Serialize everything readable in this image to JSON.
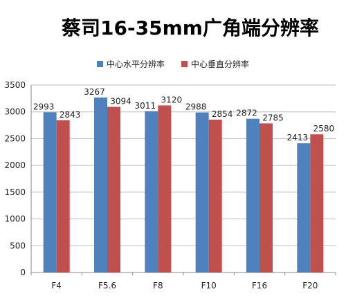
{
  "chart_data": {
    "type": "bar",
    "title": "蔡司16-35mm广角端分辨率",
    "categories": [
      "F4",
      "F5.6",
      "F8",
      "F10",
      "F16",
      "F20"
    ],
    "series": [
      {
        "name": "中心水平分辨率",
        "values": [
          2993,
          3267,
          3011,
          2988,
          2872,
          2413
        ],
        "color": "#4F81BD"
      },
      {
        "name": "中心垂直分辨率",
        "values": [
          2843,
          3094,
          3120,
          2854,
          2785,
          2580
        ],
        "color": "#C0504D"
      }
    ],
    "ylim": [
      0,
      3500
    ],
    "yticks": [
      0,
      500,
      1000,
      1500,
      2000,
      2500,
      3000,
      3500
    ],
    "grid": true,
    "legend_position": "top"
  }
}
